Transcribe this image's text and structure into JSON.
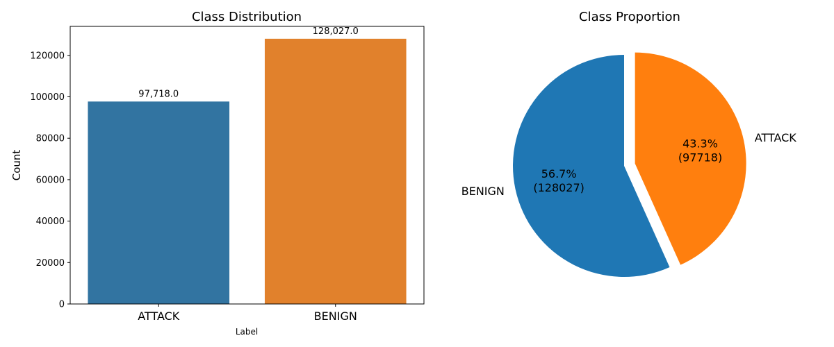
{
  "chart_data": [
    {
      "type": "bar",
      "title": "Class Distribution",
      "xlabel": "Label",
      "ylabel": "Count",
      "categories": [
        "ATTACK",
        "BENIGN"
      ],
      "values": [
        97718,
        128027
      ],
      "data_labels": [
        "97,718.0",
        "128,027.0"
      ],
      "colors": [
        "#3274a1",
        "#e1812c"
      ],
      "ylim": [
        0,
        134000
      ],
      "yticks": [
        0,
        20000,
        40000,
        60000,
        80000,
        100000,
        120000
      ],
      "ytick_labels": [
        "0",
        "20000",
        "40000",
        "60000",
        "80000",
        "100000",
        "120000"
      ],
      "grid": false
    },
    {
      "type": "pie",
      "title": "Class Proportion",
      "labels": [
        "BENIGN",
        "ATTACK"
      ],
      "values": [
        128027,
        97718
      ],
      "pct_labels": [
        "56.7%\n(128027)",
        "43.3%\n(97718)"
      ],
      "colors": [
        "#1f77b4",
        "#ff7f0e"
      ],
      "start_angle_deg": 90,
      "explode": [
        0,
        0.1
      ]
    }
  ]
}
